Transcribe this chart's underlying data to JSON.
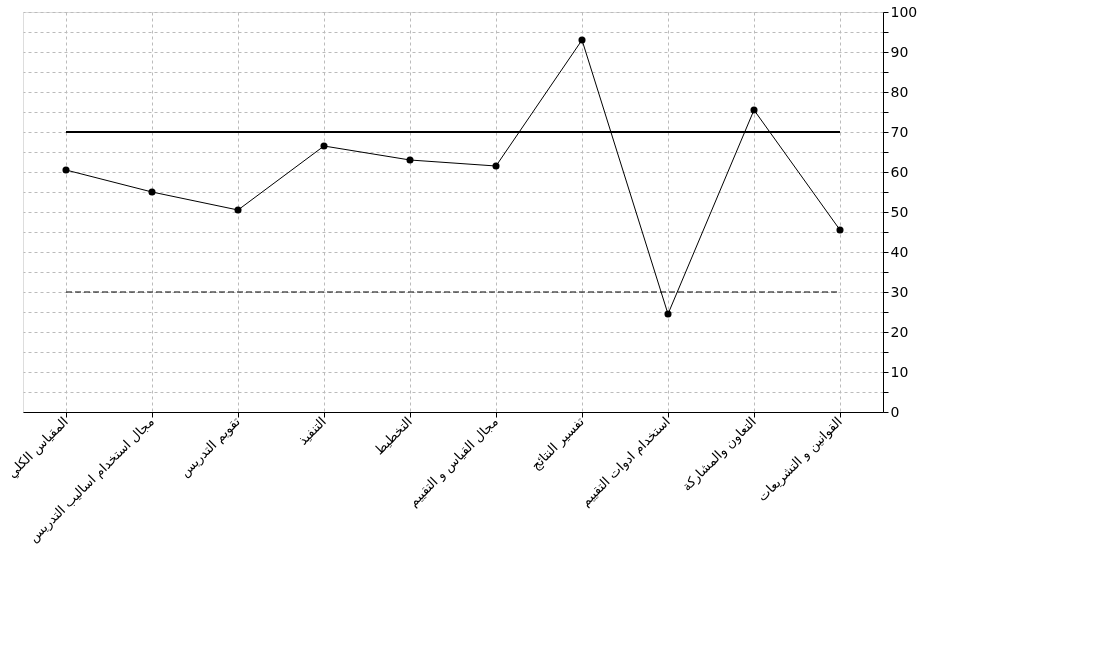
{
  "chart_data": {
    "type": "line",
    "categories": [
      "المقياس الكلي",
      "مجال استخدام اساليب التدريس",
      "تقويم التدريس",
      "التنفيذ",
      "التخطيط",
      "مجال القياس و التقييم",
      "تفسير النتائج",
      "استخدام ادوات التقييم",
      "التعاون والمشاركة",
      "القوانين و التشريعات"
    ],
    "series": [
      {
        "color": "#000000",
        "values": [
          60.5,
          55,
          50.5,
          66.5,
          63,
          61.5,
          93,
          24.5,
          75.5,
          45.5
        ]
      }
    ],
    "ylim": [
      0,
      100
    ],
    "yticks": [
      0,
      {
        "value": 5,
        "label": null
      },
      10,
      {
        "value": 15,
        "label": null
      },
      20,
      {
        "value": 25,
        "label": null
      },
      30,
      {
        "value": 35,
        "label": null
      },
      40,
      {
        "value": 45,
        "label": null
      },
      50,
      {
        "value": 55,
        "label": null
      },
      60,
      {
        "value": 65,
        "label": null
      },
      70,
      {
        "value": 75,
        "label": null
      },
      80,
      {
        "value": 85,
        "label": null
      },
      90,
      {
        "value": 95,
        "label": null
      },
      100
    ],
    "ref_lines": [
      {
        "axis": "y",
        "value": 70,
        "color": "#000000",
        "line_style": "solid"
      },
      {
        "axis": "y",
        "value": 30,
        "color": "#000000",
        "line_style": "dashed"
      }
    ],
    "grid": true,
    "marker": "circle",
    "line_style": "solid"
  }
}
